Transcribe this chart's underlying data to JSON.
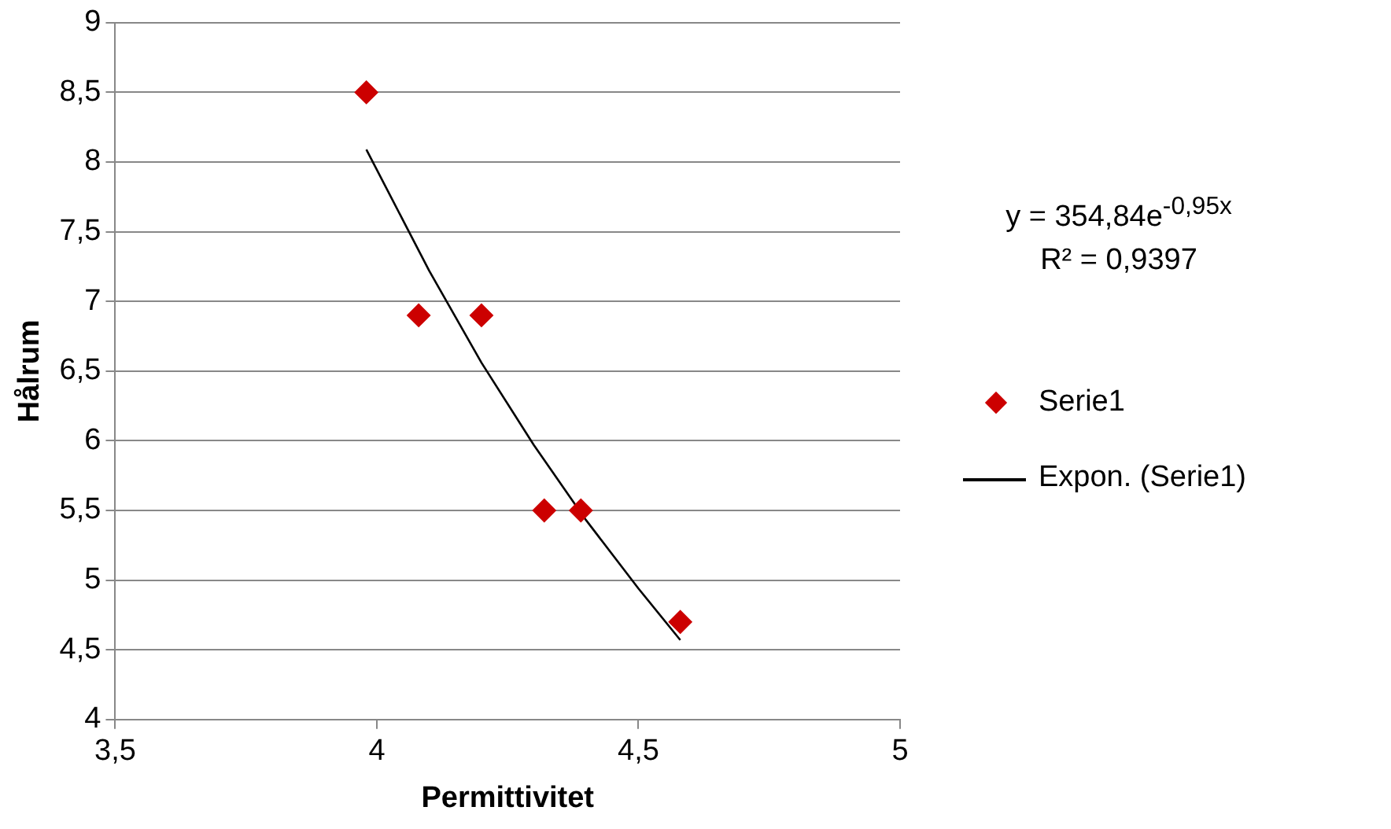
{
  "chart_data": {
    "type": "scatter",
    "xlabel": "Permittivitet",
    "ylabel": "Hålrum",
    "xlim": [
      3.5,
      5
    ],
    "xticks": [
      {
        "value": 3.5,
        "label": "3,5"
      },
      4,
      {
        "value": 4.5,
        "label": "4,5"
      },
      5
    ],
    "ylim": [
      4,
      9
    ],
    "yticks": [
      4,
      {
        "value": 4.5,
        "label": "4,5"
      },
      5,
      {
        "value": 5.5,
        "label": "5,5"
      },
      6,
      {
        "value": 6.5,
        "label": "6,5"
      },
      7,
      {
        "value": 7.5,
        "label": "7,5"
      },
      8,
      {
        "value": 8.5,
        "label": "8,5"
      },
      9
    ],
    "grid": "y",
    "legend": "right",
    "annotations": [
      "y = 354,84e$^{-0,95x}$",
      "R² = 0,9397"
    ],
    "series": [
      {
        "name": "Serie1",
        "marker": "diamond",
        "color": "#cc0000",
        "x": [
          3.98,
          4.08,
          4.2,
          4.32,
          4.39,
          4.58
        ],
        "values": [
          8.5,
          6.9,
          6.9,
          5.5,
          5.5,
          4.7
        ]
      },
      {
        "name": "Expon. (Serie1)",
        "type": "line",
        "marker": "none",
        "line_style": "solid",
        "color": "#000000",
        "x": [
          3.98,
          4.1,
          4.2,
          4.3,
          4.4,
          4.5,
          4.58
        ],
        "values": [
          8.09,
          7.22,
          6.56,
          5.97,
          5.43,
          4.94,
          4.57
        ]
      }
    ]
  }
}
